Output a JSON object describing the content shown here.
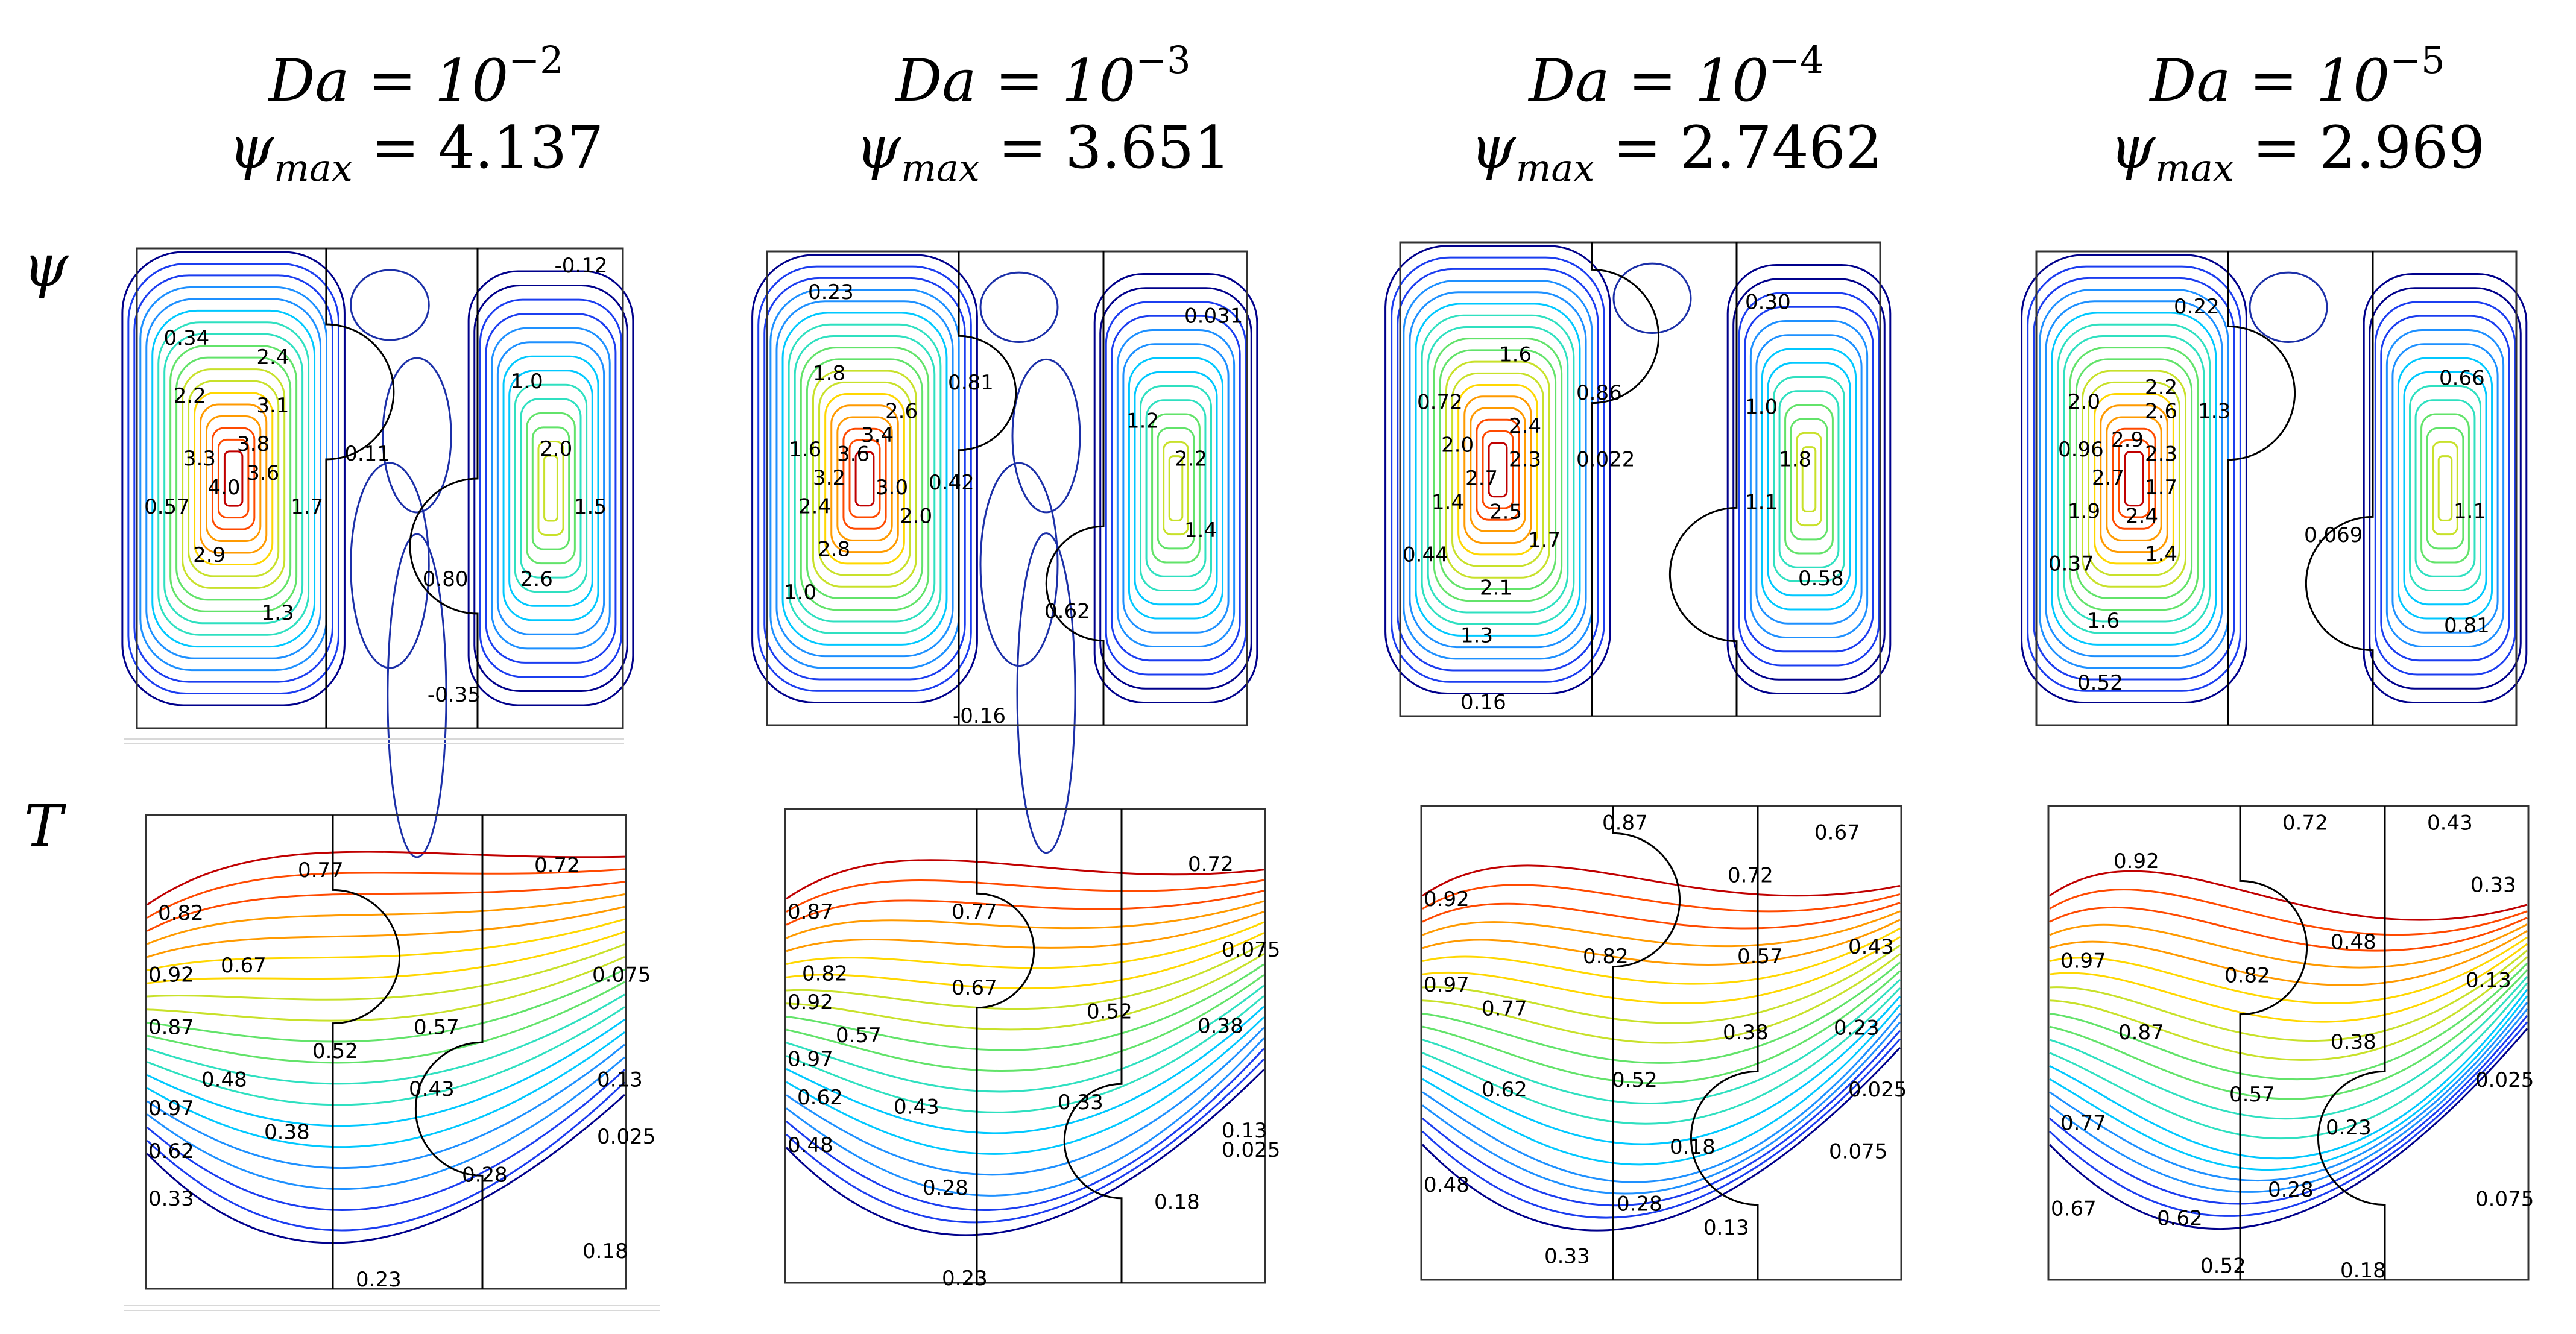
{
  "columns": [
    {
      "da_base": "Da = 10",
      "da_exp": "−2",
      "psi_symbol": "ψ",
      "psi_sub": "max",
      "psi_value": " = 4.137"
    },
    {
      "da_base": "Da = 10",
      "da_exp": "−3",
      "psi_symbol": "ψ",
      "psi_sub": "max",
      "psi_value": " = 3.651"
    },
    {
      "da_base": "Da = 10",
      "da_exp": "−4",
      "psi_symbol": "ψ",
      "psi_sub": "max",
      "psi_value": " = 2.7462"
    },
    {
      "da_base": "Da = 10",
      "da_exp": "−5",
      "psi_symbol": "ψ",
      "psi_sub": "max",
      "psi_value": " = 2.969"
    }
  ],
  "row_labels": {
    "psi": "ψ",
    "temperature": "T"
  },
  "colors": {
    "scale": [
      "#00008b",
      "#1b3df0",
      "#1e90ff",
      "#00c8ff",
      "#2fe0c0",
      "#62e36a",
      "#c8e12a",
      "#ffd700",
      "#ff9a00",
      "#ff4a00",
      "#c00000"
    ],
    "wall": "#000000"
  },
  "panels": {
    "psi": [
      {
        "labels": [
          "-0.12",
          "0.34",
          "2.4",
          "2.2",
          "3.1",
          "3.3",
          "3.8",
          "4.0",
          "3.6",
          "0.11",
          "1.0",
          "2.0",
          "0.57",
          "1.7",
          "1.5",
          "2.9",
          "0.80",
          "2.6",
          "1.3",
          "-0.35"
        ]
      },
      {
        "labels": [
          "0.23",
          "0.031",
          "1.8",
          "0.81",
          "2.6",
          "1.2",
          "1.6",
          "3.4",
          "3.6",
          "2.2",
          "3.2",
          "0.42",
          "2.4",
          "3.0",
          "2.0",
          "1.4",
          "2.8",
          "1.0",
          "0.62",
          "-0.16"
        ]
      },
      {
        "labels": [
          "0.30",
          "1.6",
          "0.72",
          "0.86",
          "2.4",
          "1.0",
          "2.0",
          "2.3",
          "0.022",
          "1.8",
          "2.7",
          "1.4",
          "1.1",
          "2.5",
          "1.7",
          "0.44",
          "0.58",
          "2.1",
          "1.3",
          "0.16"
        ]
      },
      {
        "labels": [
          "0.22",
          "0.66",
          "2.2",
          "2.0",
          "2.6",
          "1.3",
          "2.9",
          "0.96",
          "2.3",
          "2.7",
          "1.7",
          "1.9",
          "2.4",
          "1.1",
          "0.069",
          "0.37",
          "1.4",
          "1.6",
          "0.81",
          "0.52"
        ]
      }
    ],
    "temperature": [
      {
        "labels": [
          "0.77",
          "0.72",
          "0.82",
          "0.67",
          "0.92",
          "0.075",
          "0.87",
          "0.57",
          "0.52",
          "0.48",
          "0.13",
          "0.43",
          "0.97",
          "0.025",
          "0.62",
          "0.38",
          "0.28",
          "0.33",
          "0.18",
          "0.23"
        ]
      },
      {
        "labels": [
          "0.72",
          "0.87",
          "0.77",
          "0.075",
          "0.82",
          "0.92",
          "0.67",
          "0.52",
          "0.57",
          "0.38",
          "0.97",
          "0.62",
          "0.33",
          "0.43",
          "0.13",
          "0.48",
          "0.025",
          "0.28",
          "0.18",
          "0.23"
        ]
      },
      {
        "labels": [
          "0.87",
          "0.67",
          "0.72",
          "0.92",
          "0.82",
          "0.57",
          "0.97",
          "0.43",
          "0.77",
          "0.38",
          "0.23",
          "0.62",
          "0.52",
          "0.025",
          "0.18",
          "0.48",
          "0.075",
          "0.28",
          "0.13",
          "0.33"
        ]
      },
      {
        "labels": [
          "0.72",
          "0.43",
          "0.92",
          "0.33",
          "0.48",
          "0.97",
          "0.82",
          "0.13",
          "0.87",
          "0.38",
          "0.025",
          "0.57",
          "0.77",
          "0.23",
          "0.28",
          "0.67",
          "0.62",
          "0.075",
          "0.52",
          "0.18"
        ]
      }
    ]
  }
}
